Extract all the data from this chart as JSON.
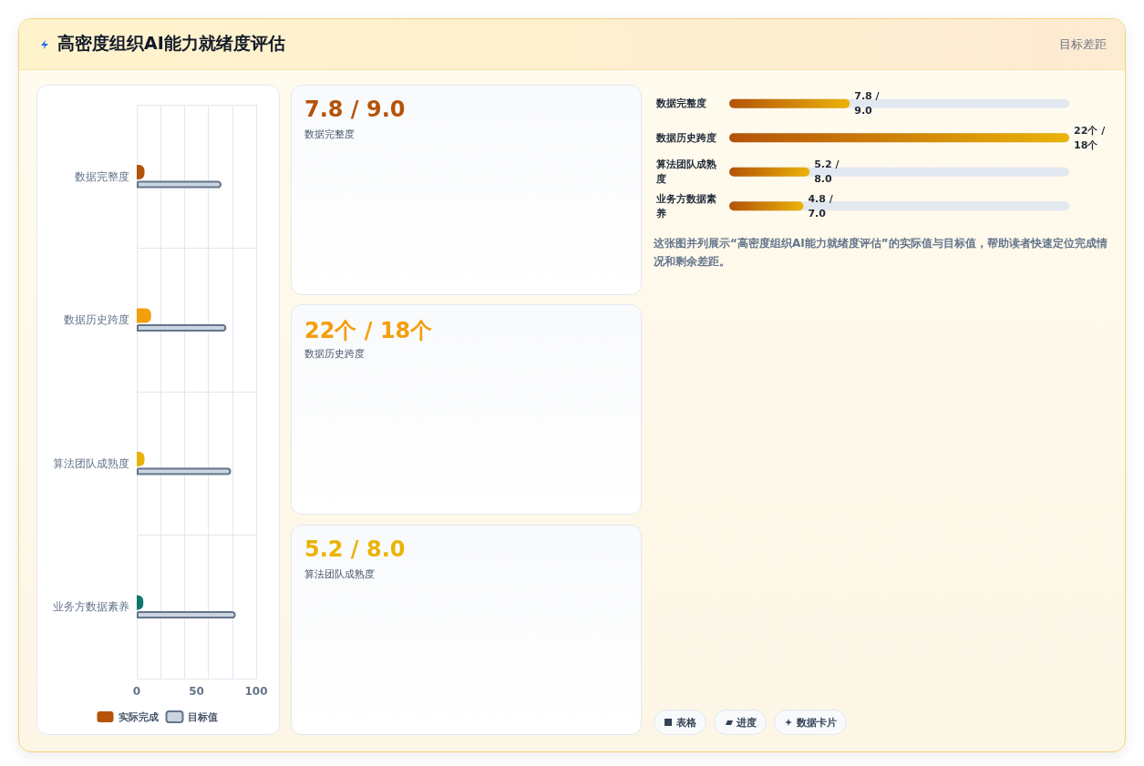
{
  "chart_data": [
    {
      "type": "other",
      "title": "高密度组织AI能力就绪度评估",
      "subtitle": "目标差距"
    },
    {
      "type": "bar",
      "orientation": "horizontal",
      "categories": [
        "数据完整度",
        "数据历史跨度",
        "算法团队成熟度",
        "业务方数据素养"
      ],
      "series": [
        {
          "name": "实际完成",
          "color": "#b45309",
          "colors": [
            "#b45309",
            "#f59e0b",
            "#eab308",
            "#0f766e"
          ],
          "values": [
            6.5,
            12,
            6.5,
            5.5
          ]
        },
        {
          "name": "目标值",
          "color": "#cbd5e1",
          "values": [
            71,
            75,
            79,
            83
          ]
        }
      ],
      "xlim": [
        0,
        100
      ],
      "xticks": [
        0,
        50,
        100
      ],
      "grid": true,
      "legend": "bottom"
    },
    {
      "type": "other",
      "title": "7.8 / 9.0",
      "subtitle": "数据完整度",
      "color": "#b45309"
    },
    {
      "type": "other",
      "title": "22个 / 18个",
      "subtitle": "数据历史跨度",
      "color": "#f59e0b"
    },
    {
      "type": "other",
      "title": "5.2 / 8.0",
      "subtitle": "算法团队成熟度",
      "color": "#eab308"
    },
    {
      "type": "bar",
      "orientation": "horizontal",
      "tick_labels": "y",
      "categories": [
        "数据完整度",
        "数据历史跨度",
        "算法团队成熟度",
        "业务方数据素养"
      ],
      "series": [
        {
          "color": "#b45309",
          "values": [
            7.8,
            22,
            5.2,
            4.8
          ],
          "value_labels": [
            "7.8 / 9.0",
            "22个 / 18个",
            "5.2 / 8.0",
            "4.8 / 7.0"
          ]
        }
      ],
      "annotations": [
        "这张图并列展示“高密度组织AI能力就绪度评估”的实际值与目标值，帮助读者快速定位完成情况和剩余差距。",
        "表格",
        "进度",
        "数据卡片"
      ]
    }
  ]
}
